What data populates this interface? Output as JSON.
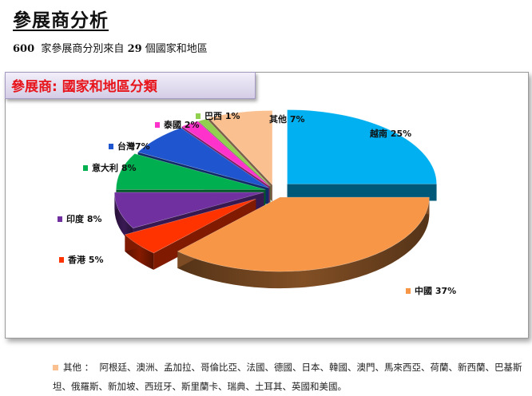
{
  "header": {
    "title": "參展商分析",
    "subtitle_count": "600",
    "subtitle_text1": "家參展商分別來自",
    "subtitle_num": "29",
    "subtitle_text2": "個國家和地區"
  },
  "chart_banner": "參展商: 國家和地區分類",
  "chart_data": {
    "type": "pie",
    "title": "參展商: 國家和地區分類",
    "slices": [
      {
        "label": "越南",
        "value": 25,
        "display": "越南 25%",
        "color": "#00b0f0"
      },
      {
        "label": "中國",
        "value": 37,
        "display": "中國 37%",
        "color": "#f79646"
      },
      {
        "label": "香港",
        "value": 5,
        "display": "香港 5%",
        "color": "#ff3300"
      },
      {
        "label": "印度",
        "value": 8,
        "display": "印度 8%",
        "color": "#7030a0"
      },
      {
        "label": "意大利",
        "value": 8,
        "display": "意大利 8%",
        "color": "#00b050"
      },
      {
        "label": "台灣",
        "value": 7,
        "display": "台灣7%",
        "color": "#1f55cf"
      },
      {
        "label": "泰國",
        "value": 2,
        "display": "泰國 2%",
        "color": "#ff33cc"
      },
      {
        "label": "巴西",
        "value": 1,
        "display": "巴西 1%",
        "color": "#92d050"
      },
      {
        "label": "其他",
        "value": 7,
        "display": "其他 7%",
        "color": "#fac090"
      }
    ]
  },
  "footnote": {
    "label": "其他 ：",
    "text": "阿根廷、澳洲、孟加拉、哥倫比亞、法國、德國、日本、韓國、澳門、馬來西亞、荷蘭、新西蘭、巴基斯坦、俄羅斯、新加坡、西班牙、斯里蘭卡、瑞典、土耳其、英國和美國。"
  }
}
